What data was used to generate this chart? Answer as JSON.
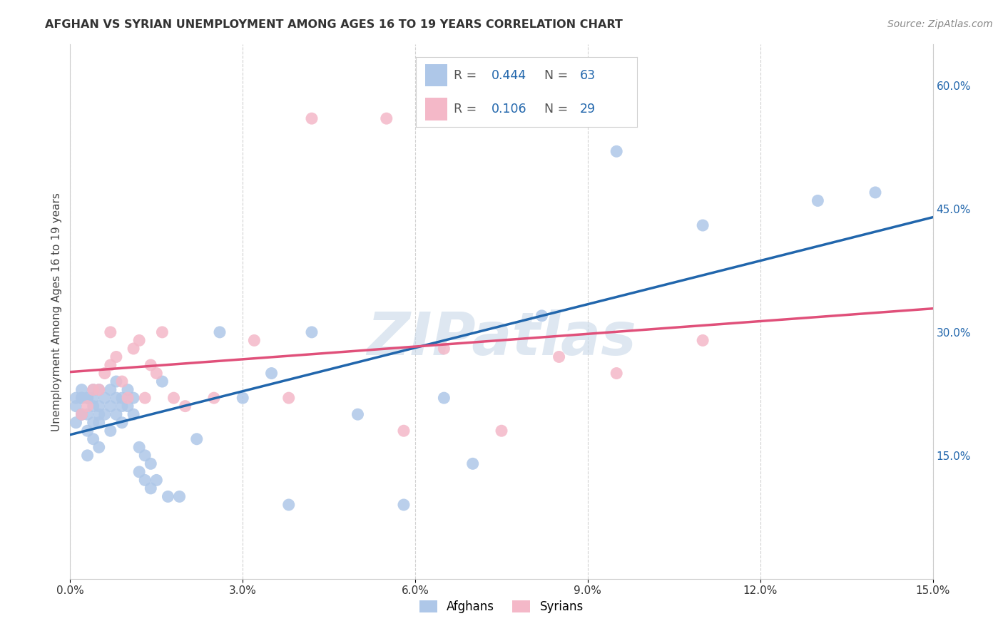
{
  "title": "AFGHAN VS SYRIAN UNEMPLOYMENT AMONG AGES 16 TO 19 YEARS CORRELATION CHART",
  "source": "Source: ZipAtlas.com",
  "ylabel": "Unemployment Among Ages 16 to 19 years",
  "xlim": [
    0,
    0.15
  ],
  "ylim": [
    0,
    0.65
  ],
  "xticks": [
    0.0,
    0.03,
    0.06,
    0.09,
    0.12,
    0.15
  ],
  "yticks_right": [
    0.15,
    0.3,
    0.45,
    0.6
  ],
  "ytick_labels_right": [
    "15.0%",
    "30.0%",
    "45.0%",
    "60.0%"
  ],
  "xtick_labels": [
    "0.0%",
    "3.0%",
    "6.0%",
    "9.0%",
    "12.0%",
    "15.0%"
  ],
  "afghan_color": "#aec7e8",
  "syrian_color": "#f4b8c8",
  "afghan_line_color": "#2166ac",
  "syrian_line_color": "#e0507a",
  "afghan_R": "0.444",
  "afghan_N": "63",
  "syrian_R": "0.106",
  "syrian_N": "29",
  "watermark": "ZIPatlas",
  "background_color": "#ffffff",
  "grid_color": "#cccccc",
  "legend_value_color": "#2166ac",
  "legend_label_color": "#555555",
  "afghan_x": [
    0.001,
    0.001,
    0.001,
    0.002,
    0.002,
    0.002,
    0.002,
    0.002,
    0.003,
    0.003,
    0.003,
    0.003,
    0.003,
    0.004,
    0.004,
    0.004,
    0.004,
    0.004,
    0.005,
    0.005,
    0.005,
    0.005,
    0.005,
    0.006,
    0.006,
    0.007,
    0.007,
    0.007,
    0.008,
    0.008,
    0.008,
    0.009,
    0.009,
    0.009,
    0.01,
    0.01,
    0.011,
    0.011,
    0.012,
    0.012,
    0.013,
    0.013,
    0.014,
    0.014,
    0.015,
    0.016,
    0.017,
    0.019,
    0.022,
    0.026,
    0.03,
    0.035,
    0.038,
    0.042,
    0.05,
    0.058,
    0.065,
    0.07,
    0.082,
    0.095,
    0.11,
    0.13,
    0.14
  ],
  "afghan_y": [
    0.19,
    0.21,
    0.22,
    0.2,
    0.2,
    0.22,
    0.22,
    0.23,
    0.15,
    0.18,
    0.2,
    0.22,
    0.22,
    0.17,
    0.19,
    0.21,
    0.22,
    0.23,
    0.16,
    0.19,
    0.2,
    0.21,
    0.23,
    0.2,
    0.22,
    0.18,
    0.21,
    0.23,
    0.2,
    0.22,
    0.24,
    0.19,
    0.21,
    0.22,
    0.21,
    0.23,
    0.2,
    0.22,
    0.13,
    0.16,
    0.12,
    0.15,
    0.11,
    0.14,
    0.12,
    0.24,
    0.1,
    0.1,
    0.17,
    0.3,
    0.22,
    0.25,
    0.09,
    0.3,
    0.2,
    0.09,
    0.22,
    0.14,
    0.32,
    0.52,
    0.43,
    0.46,
    0.47
  ],
  "syrian_x": [
    0.002,
    0.003,
    0.004,
    0.005,
    0.006,
    0.007,
    0.007,
    0.008,
    0.009,
    0.01,
    0.011,
    0.012,
    0.013,
    0.014,
    0.015,
    0.016,
    0.018,
    0.02,
    0.025,
    0.032,
    0.038,
    0.042,
    0.055,
    0.058,
    0.065,
    0.075,
    0.085,
    0.095,
    0.11
  ],
  "syrian_y": [
    0.2,
    0.21,
    0.23,
    0.23,
    0.25,
    0.26,
    0.3,
    0.27,
    0.24,
    0.22,
    0.28,
    0.29,
    0.22,
    0.26,
    0.25,
    0.3,
    0.22,
    0.21,
    0.22,
    0.29,
    0.22,
    0.56,
    0.56,
    0.18,
    0.28,
    0.18,
    0.27,
    0.25,
    0.29
  ]
}
